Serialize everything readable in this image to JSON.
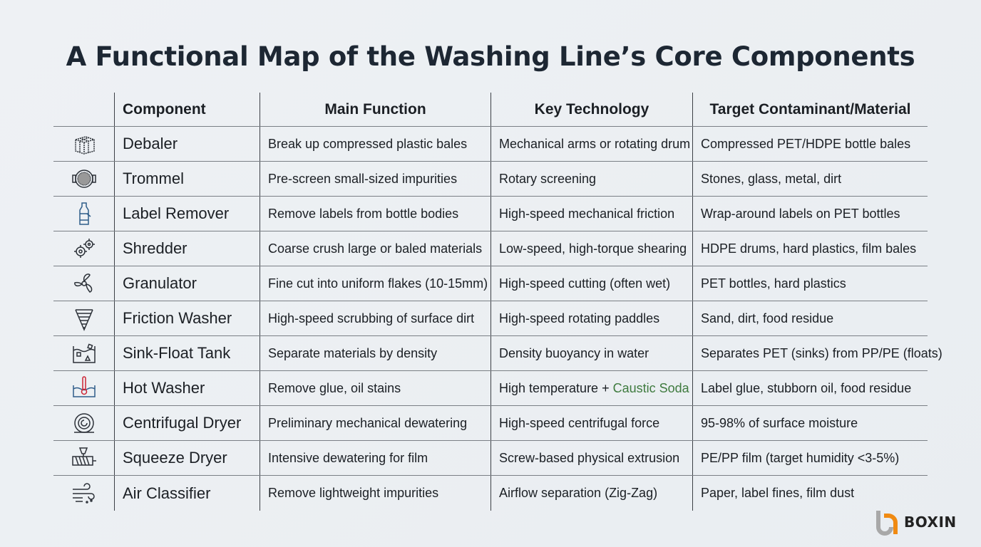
{
  "title": "A Functional Map of the Washing Line’s Core Components",
  "headers": [
    "Component",
    "Main Function",
    "Key Technology",
    "Target Contaminant/Material"
  ],
  "rows": [
    {
      "icon": "bale-box-icon",
      "component": "Debaler",
      "function": "Break up compressed plastic bales",
      "tech": "Mechanical arms or rotating drum",
      "target": "Compressed PET/HDPE bottle bales"
    },
    {
      "icon": "trommel-screen-icon",
      "component": "Trommel",
      "function": "Pre-screen small-sized impurities",
      "tech": "Rotary screening",
      "target": "Stones, glass, metal, dirt"
    },
    {
      "icon": "bottle-icon",
      "component": "Label Remover",
      "function": "Remove labels from bottle bodies",
      "tech": "High-speed mechanical friction",
      "target": "Wrap-around labels on PET bottles"
    },
    {
      "icon": "gears-icon",
      "component": "Shredder",
      "function": "Coarse crush large or baled materials",
      "tech": "Low-speed, high-torque shearing",
      "target": "HDPE drums, hard plastics, film bales"
    },
    {
      "icon": "blade-rotor-icon",
      "component": "Granulator",
      "function": "Fine cut into uniform flakes (10-15mm)",
      "tech": "High-speed cutting (often wet)",
      "target": "PET bottles, hard plastics"
    },
    {
      "icon": "vortex-icon",
      "component": "Friction Washer",
      "function": "High-speed scrubbing of surface dirt",
      "tech": "High-speed rotating paddles",
      "target": "Sand, dirt, food residue"
    },
    {
      "icon": "tank-icon",
      "component": "Sink-Float Tank",
      "function": "Separate materials by density",
      "tech": "Density buoyancy in water",
      "target": "Separates PET (sinks) from PP/PE (floats)"
    },
    {
      "icon": "thermometer-water-icon",
      "component": "Hot Washer",
      "function": "Remove glue, oil stains",
      "tech": "High temperature + ",
      "tech_highlight": "Caustic Soda",
      "target": "Label glue, stubborn oil, food residue"
    },
    {
      "icon": "centrifuge-icon",
      "component": "Centrifugal Dryer",
      "function": "Preliminary mechanical dewatering",
      "tech": "High-speed centrifugal force",
      "target": "95-98% of surface moisture"
    },
    {
      "icon": "screw-press-icon",
      "component": "Squeeze Dryer",
      "function": "Intensive dewatering for film",
      "tech": "Screw-based physical extrusion",
      "target": "PE/PP film (target humidity <3-5%)"
    },
    {
      "icon": "airflow-icon",
      "component": "Air Classifier",
      "function": "Remove lightweight impurities",
      "tech": "Airflow separation (Zig-Zag)",
      "target": "Paper, label fines, film dust"
    }
  ],
  "colors": {
    "highlight": "#3e7a3e",
    "logo_orange": "#f08a12",
    "logo_gray": "#a8a8a8"
  },
  "logo": {
    "text": "BOXIN"
  }
}
